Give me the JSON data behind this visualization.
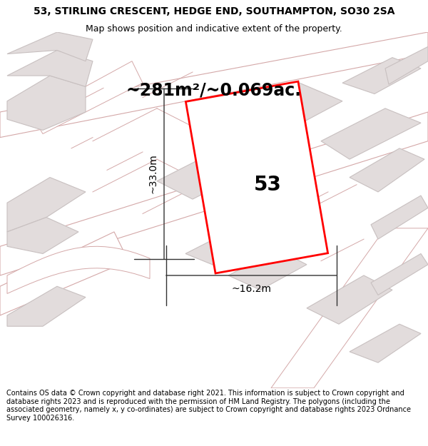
{
  "title": "53, STIRLING CRESCENT, HEDGE END, SOUTHAMPTON, SO30 2SA",
  "subtitle": "Map shows position and indicative extent of the property.",
  "area_label": "~281m²/~0.069ac.",
  "house_number": "53",
  "width_label": "~16.2m",
  "height_label": "~33.0m",
  "footer": "Contains OS data © Crown copyright and database right 2021. This information is subject to Crown copyright and database rights 2023 and is reproduced with the permission of HM Land Registry. The polygons (including the associated geometry, namely x, y co-ordinates) are subject to Crown copyright and database rights 2023 Ordnance Survey 100026316.",
  "bg_color": "#f2eeee",
  "plot_fill": "#ffffff",
  "plot_border": "#ff0000",
  "road_fill": "#ffffff",
  "road_line": "#d4a8a8",
  "block_fill": "#e2dcdc",
  "block_line": "#c8c0c0",
  "dim_color": "#333333",
  "title_fontsize": 10,
  "subtitle_fontsize": 9,
  "area_fontsize": 17,
  "number_fontsize": 20,
  "dim_fontsize": 10,
  "footer_fontsize": 7
}
